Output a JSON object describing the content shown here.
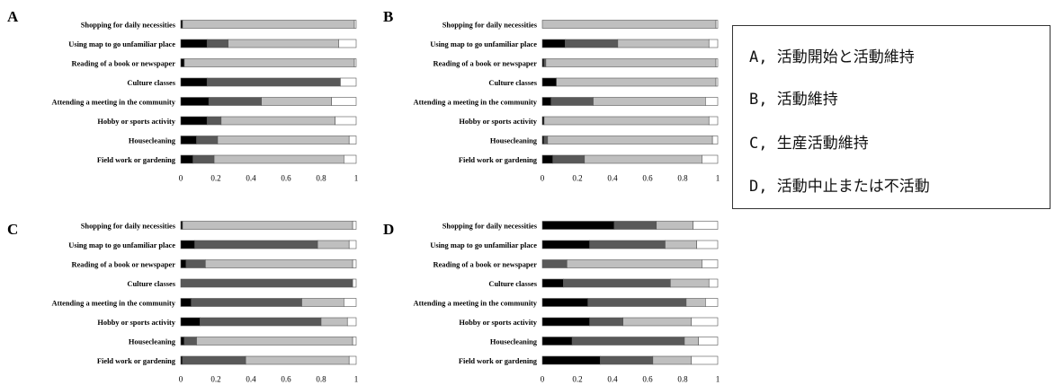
{
  "colors": {
    "black": "#000000",
    "dark_gray": "#595959",
    "light_gray": "#bfbfbf",
    "white": "#ffffff",
    "outline": "#555555"
  },
  "legend": {
    "items": [
      "A, 活動開始と活動維持",
      "B, 活動維持",
      "C, 生産活動維持",
      "D, 活動中止または不活動"
    ]
  },
  "chart_data": [
    {
      "type": "bar",
      "panel_label": "A",
      "orientation": "horizontal",
      "stacked": true,
      "categories": [
        "Shopping for daily necessities",
        "Using map to go unfamiliar place",
        "Reading of a book or newspaper",
        "Culture classes",
        "Attending a meeting in the community",
        "Hobby or sports activity",
        "Housecleaning",
        "Field work or gardening"
      ],
      "series": [
        {
          "color": "#000000",
          "values": [
            0.01,
            0.15,
            0.02,
            0.15,
            0.16,
            0.15,
            0.09,
            0.07
          ]
        },
        {
          "color": "#595959",
          "values": [
            0.0,
            0.12,
            0.0,
            0.76,
            0.3,
            0.08,
            0.12,
            0.12
          ]
        },
        {
          "color": "#bfbfbf",
          "values": [
            0.98,
            0.63,
            0.97,
            0.0,
            0.4,
            0.65,
            0.75,
            0.74
          ]
        },
        {
          "color": "#ffffff",
          "values": [
            0.01,
            0.1,
            0.01,
            0.09,
            0.14,
            0.12,
            0.04,
            0.07
          ]
        }
      ],
      "xlim": [
        0,
        1
      ],
      "xticks": [
        "0",
        "0.2",
        "0.4",
        "0.6",
        "0.8",
        "1"
      ]
    },
    {
      "type": "bar",
      "panel_label": "B",
      "orientation": "horizontal",
      "stacked": true,
      "categories": [
        "Shopping for daily necessities",
        "Using map to go unfamiliar place",
        "Reading of a book or newspaper",
        "Culture classes",
        "Attending a meeting in the community",
        "Hobby or sports activity",
        "Housecleaning",
        "Field work or gardening"
      ],
      "series": [
        {
          "color": "#000000",
          "values": [
            0.0,
            0.13,
            0.01,
            0.08,
            0.05,
            0.01,
            0.01,
            0.06
          ]
        },
        {
          "color": "#595959",
          "values": [
            0.0,
            0.3,
            0.01,
            0.0,
            0.24,
            0.0,
            0.02,
            0.18
          ]
        },
        {
          "color": "#bfbfbf",
          "values": [
            0.99,
            0.52,
            0.97,
            0.91,
            0.64,
            0.94,
            0.94,
            0.67
          ]
        },
        {
          "color": "#ffffff",
          "values": [
            0.01,
            0.05,
            0.01,
            0.01,
            0.07,
            0.05,
            0.03,
            0.09
          ]
        }
      ],
      "xlim": [
        0,
        1
      ],
      "xticks": [
        "0",
        "0.2",
        "0.4",
        "0.6",
        "0.8",
        "1"
      ]
    },
    {
      "type": "bar",
      "panel_label": "C",
      "orientation": "horizontal",
      "stacked": true,
      "categories": [
        "Shopping for daily necessities",
        "Using map to go unfamiliar place",
        "Reading of a book or newspaper",
        "Culture classes",
        "Attending a meeting in the community",
        "Hobby or sports activity",
        "Housecleaning",
        "Field work or gardening"
      ],
      "series": [
        {
          "color": "#000000",
          "values": [
            0.01,
            0.08,
            0.03,
            0.0,
            0.06,
            0.11,
            0.02,
            0.01
          ]
        },
        {
          "color": "#595959",
          "values": [
            0.0,
            0.7,
            0.11,
            0.98,
            0.63,
            0.69,
            0.07,
            0.36
          ]
        },
        {
          "color": "#bfbfbf",
          "values": [
            0.97,
            0.18,
            0.84,
            0.0,
            0.24,
            0.15,
            0.89,
            0.59
          ]
        },
        {
          "color": "#ffffff",
          "values": [
            0.02,
            0.04,
            0.02,
            0.02,
            0.07,
            0.05,
            0.02,
            0.04
          ]
        }
      ],
      "xlim": [
        0,
        1
      ],
      "xticks": [
        "0",
        "0.2",
        "0.4",
        "0.6",
        "0.8",
        "1"
      ]
    },
    {
      "type": "bar",
      "panel_label": "D",
      "orientation": "horizontal",
      "stacked": true,
      "categories": [
        "Shopping for daily necessities",
        "Using map to go unfamiliar place",
        "Reading of a book or newspaper",
        "Culture classes",
        "Attending a meeting in the community",
        "Hobby or sports activity",
        "Housecleaning",
        "Field work or gardening"
      ],
      "series": [
        {
          "color": "#000000",
          "values": [
            0.41,
            0.27,
            0.0,
            0.12,
            0.26,
            0.27,
            0.17,
            0.33
          ]
        },
        {
          "color": "#595959",
          "values": [
            0.24,
            0.43,
            0.14,
            0.61,
            0.56,
            0.19,
            0.64,
            0.3
          ]
        },
        {
          "color": "#bfbfbf",
          "values": [
            0.21,
            0.18,
            0.77,
            0.22,
            0.11,
            0.39,
            0.08,
            0.22
          ]
        },
        {
          "color": "#ffffff",
          "values": [
            0.14,
            0.12,
            0.09,
            0.05,
            0.07,
            0.15,
            0.11,
            0.15
          ]
        }
      ],
      "xlim": [
        0,
        1
      ],
      "xticks": [
        "0",
        "0.2",
        "0.4",
        "0.6",
        "0.8",
        "1"
      ]
    }
  ]
}
